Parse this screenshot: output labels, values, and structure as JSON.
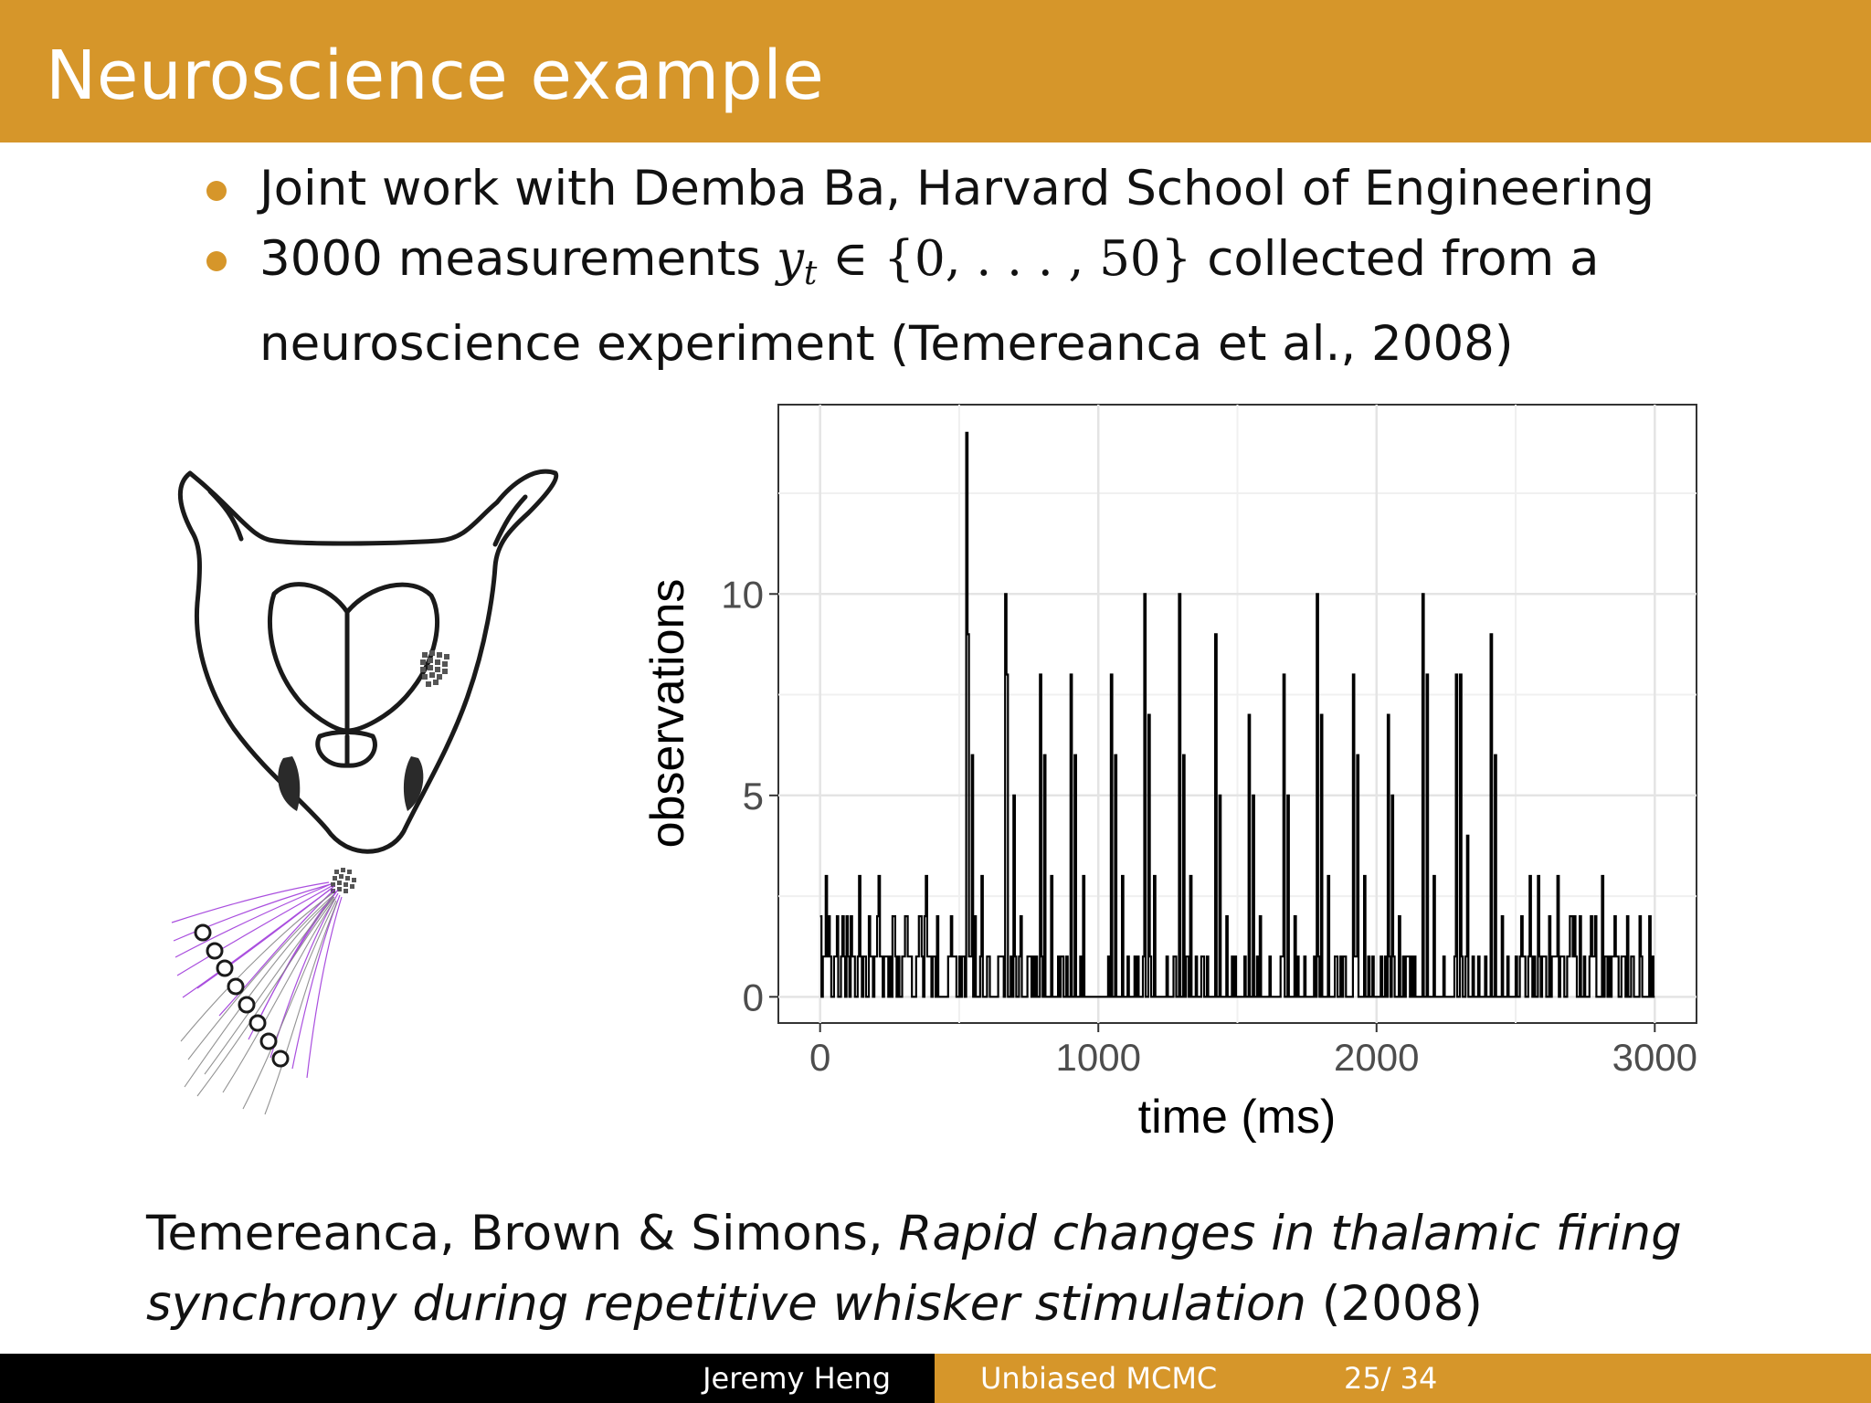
{
  "header": {
    "title": "Neuroscience example"
  },
  "bullets": {
    "b1": "Joint work with Demba Ba, Harvard School of Engineering",
    "b2_pre": "3000 measurements ",
    "b2_var": "y",
    "b2_sub": "t",
    "b2_math": " ∈ {0, . . . , 50}",
    "b2_post": " collected from a",
    "b2_line2": "neuroscience experiment (Temereanca et al., 2008)"
  },
  "figure": {
    "illustration": "rat-whisker-thalamus-diagram"
  },
  "chart_data": {
    "type": "line",
    "xlabel": "time (ms)",
    "ylabel": "observations",
    "xlim": [
      -150,
      3150
    ],
    "ylim": [
      -0.65,
      14.7
    ],
    "xticks": [
      0,
      1000,
      2000,
      3000
    ],
    "yticks": [
      0,
      5,
      10
    ],
    "grid": true,
    "spikes": [
      {
        "t": 20,
        "y": 3
      },
      {
        "t": 60,
        "y": 2
      },
      {
        "t": 95,
        "y": 2
      },
      {
        "t": 140,
        "y": 3
      },
      {
        "t": 175,
        "y": 2
      },
      {
        "t": 210,
        "y": 3
      },
      {
        "t": 260,
        "y": 2
      },
      {
        "t": 310,
        "y": 2
      },
      {
        "t": 355,
        "y": 2
      },
      {
        "t": 380,
        "y": 3
      },
      {
        "t": 420,
        "y": 2
      },
      {
        "t": 470,
        "y": 2
      },
      {
        "t": 525,
        "y": 14
      },
      {
        "t": 530,
        "y": 9
      },
      {
        "t": 545,
        "y": 6
      },
      {
        "t": 580,
        "y": 3
      },
      {
        "t": 665,
        "y": 10
      },
      {
        "t": 670,
        "y": 8
      },
      {
        "t": 695,
        "y": 5
      },
      {
        "t": 720,
        "y": 2
      },
      {
        "t": 790,
        "y": 8
      },
      {
        "t": 805,
        "y": 6
      },
      {
        "t": 830,
        "y": 3
      },
      {
        "t": 900,
        "y": 8
      },
      {
        "t": 915,
        "y": 6
      },
      {
        "t": 945,
        "y": 3
      },
      {
        "t": 1045,
        "y": 8
      },
      {
        "t": 1060,
        "y": 6
      },
      {
        "t": 1085,
        "y": 3
      },
      {
        "t": 1165,
        "y": 10
      },
      {
        "t": 1180,
        "y": 7
      },
      {
        "t": 1200,
        "y": 3
      },
      {
        "t": 1290,
        "y": 10
      },
      {
        "t": 1305,
        "y": 6
      },
      {
        "t": 1330,
        "y": 3
      },
      {
        "t": 1420,
        "y": 9
      },
      {
        "t": 1435,
        "y": 5
      },
      {
        "t": 1460,
        "y": 2
      },
      {
        "t": 1540,
        "y": 7
      },
      {
        "t": 1555,
        "y": 5
      },
      {
        "t": 1580,
        "y": 2
      },
      {
        "t": 1665,
        "y": 8
      },
      {
        "t": 1680,
        "y": 5
      },
      {
        "t": 1705,
        "y": 2
      },
      {
        "t": 1785,
        "y": 10
      },
      {
        "t": 1800,
        "y": 7
      },
      {
        "t": 1825,
        "y": 3
      },
      {
        "t": 1915,
        "y": 8
      },
      {
        "t": 1930,
        "y": 6
      },
      {
        "t": 1955,
        "y": 3
      },
      {
        "t": 2040,
        "y": 7
      },
      {
        "t": 2055,
        "y": 5
      },
      {
        "t": 2080,
        "y": 2
      },
      {
        "t": 2165,
        "y": 10
      },
      {
        "t": 2180,
        "y": 8
      },
      {
        "t": 2205,
        "y": 3
      },
      {
        "t": 2285,
        "y": 8
      },
      {
        "t": 2300,
        "y": 8
      },
      {
        "t": 2325,
        "y": 4
      },
      {
        "t": 2410,
        "y": 9
      },
      {
        "t": 2425,
        "y": 6
      },
      {
        "t": 2450,
        "y": 2
      },
      {
        "t": 2550,
        "y": 3
      },
      {
        "t": 2580,
        "y": 3
      },
      {
        "t": 2620,
        "y": 2
      },
      {
        "t": 2650,
        "y": 3
      },
      {
        "t": 2700,
        "y": 2
      },
      {
        "t": 2730,
        "y": 2
      },
      {
        "t": 2770,
        "y": 2
      },
      {
        "t": 2810,
        "y": 3
      },
      {
        "t": 2855,
        "y": 2
      },
      {
        "t": 2900,
        "y": 2
      },
      {
        "t": 2945,
        "y": 2
      },
      {
        "t": 2980,
        "y": 2
      }
    ]
  },
  "citation": {
    "authors": "Temereanca, Brown & Simons, ",
    "title_line1": "Rapid changes in thalamic firing",
    "title_line2": "synchrony during repetitive whisker stimulation",
    "year": " (2008)"
  },
  "footer": {
    "author": "Jeremy Heng",
    "short_title": "Unbiased MCMC",
    "page": "25/ 34"
  },
  "colors": {
    "accent": "#d6962a",
    "footer_dark": "#000000",
    "whisker_purple": "#9b30d9"
  }
}
